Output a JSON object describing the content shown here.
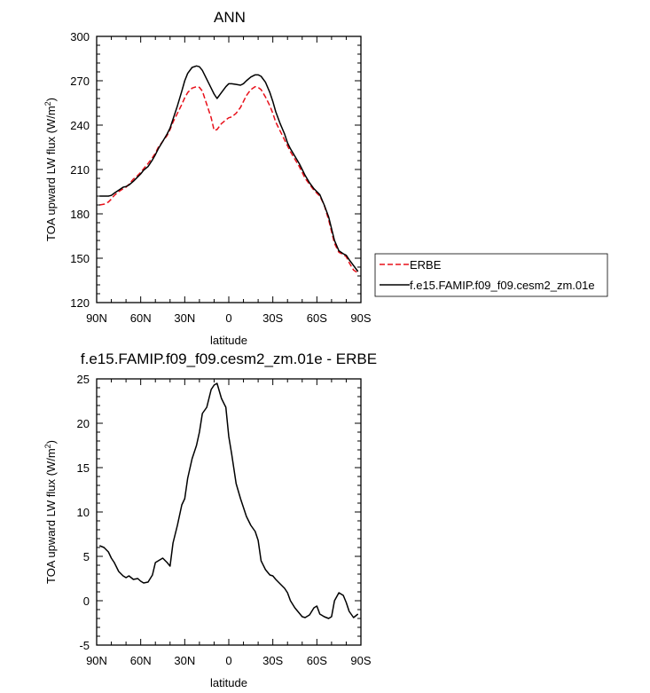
{
  "chart_data": [
    {
      "type": "line",
      "title": "ANN",
      "xlabel": "latitude",
      "ylabel": "TOA upward LW flux (W/m",
      "ylabel_sup": "2",
      "ylabel_close": ")",
      "xlim": [
        90,
        -90
      ],
      "ylim": [
        120,
        300
      ],
      "xticks": [
        90,
        60,
        30,
        0,
        -30,
        -60,
        -90
      ],
      "xticklabels": [
        "90N",
        "60N",
        "30N",
        "0",
        "30S",
        "60S",
        "90S"
      ],
      "yticks": [
        120,
        150,
        180,
        210,
        240,
        270,
        300
      ],
      "yticklabels": [
        "120",
        "150",
        "180",
        "210",
        "240",
        "270",
        "300"
      ],
      "legend_position": "right",
      "series": [
        {
          "name": "ERBE",
          "color": "#e8101a",
          "dash": "dashed",
          "x": [
            88,
            85,
            82,
            80,
            78,
            75,
            72,
            70,
            68,
            65,
            62,
            60,
            58,
            55,
            52,
            50,
            48,
            45,
            42,
            40,
            38,
            35,
            32,
            30,
            28,
            25,
            22,
            20,
            18,
            15,
            12,
            10,
            8,
            5,
            2,
            0,
            -2,
            -5,
            -8,
            -10,
            -12,
            -15,
            -18,
            -20,
            -22,
            -25,
            -28,
            -30,
            -32,
            -35,
            -38,
            -40,
            -42,
            -45,
            -48,
            -50,
            -52,
            -55,
            -58,
            -60,
            -62,
            -65,
            -68,
            -70,
            -72,
            -75,
            -78,
            -80,
            -82,
            -85,
            -88
          ],
          "y": [
            186,
            186.5,
            188,
            190,
            192.5,
            195,
            197,
            198,
            200,
            203.5,
            206,
            208,
            210.5,
            214,
            218,
            221,
            225,
            229,
            233,
            237,
            242,
            248,
            254,
            258.5,
            262,
            265,
            266,
            265.5,
            263,
            254,
            245,
            236.5,
            237,
            241,
            243.5,
            245,
            245.5,
            248,
            252,
            256,
            260,
            264,
            266,
            265.5,
            264,
            259,
            253,
            248,
            242,
            236,
            230,
            226,
            222,
            217,
            212,
            208,
            204,
            200,
            196,
            194,
            192,
            186,
            176,
            168,
            160,
            154,
            152.5,
            151,
            147,
            142,
            140
          ]
        },
        {
          "name": "f.e15.FAMIP.f09_f09.cesm2_zm.01e",
          "color": "#000000",
          "dash": "solid",
          "x": [
            88,
            85,
            82,
            80,
            78,
            75,
            72,
            70,
            68,
            65,
            62,
            60,
            58,
            55,
            52,
            50,
            48,
            45,
            42,
            40,
            38,
            35,
            32,
            30,
            28,
            25,
            22,
            20,
            18,
            15,
            12,
            10,
            8,
            5,
            2,
            0,
            -2,
            -5,
            -8,
            -10,
            -12,
            -15,
            -18,
            -20,
            -22,
            -25,
            -28,
            -30,
            -32,
            -35,
            -38,
            -40,
            -42,
            -45,
            -48,
            -50,
            -52,
            -55,
            -58,
            -60,
            -62,
            -65,
            -68,
            -70,
            -72,
            -75,
            -78,
            -80,
            -82,
            -85,
            -88
          ],
          "y": [
            192,
            192,
            192,
            192.5,
            194,
            196,
            198,
            198.5,
            199.5,
            202,
            205,
            207,
            209.5,
            212,
            216.5,
            220,
            224,
            229,
            234,
            238,
            244,
            253,
            263,
            270,
            275,
            279,
            280,
            279.5,
            277,
            271,
            265,
            261,
            258,
            262,
            266,
            268,
            268,
            267.5,
            267,
            268,
            270,
            272.5,
            274,
            274,
            273,
            269,
            262,
            256,
            249,
            241,
            234,
            228,
            224,
            219,
            214,
            210,
            206,
            201,
            197,
            195,
            193,
            186,
            178,
            170,
            162,
            155,
            153,
            152,
            149,
            145,
            141
          ]
        }
      ]
    },
    {
      "type": "line",
      "title": "f.e15.FAMIP.f09_f09.cesm2_zm.01e - ERBE",
      "xlabel": "latitude",
      "ylabel": "TOA upward LW flux (W/m",
      "ylabel_sup": "2",
      "ylabel_close": ")",
      "xlim": [
        90,
        -90
      ],
      "ylim": [
        -5,
        25
      ],
      "xticks": [
        90,
        60,
        30,
        0,
        -30,
        -60,
        -90
      ],
      "xticklabels": [
        "90N",
        "60N",
        "30N",
        "0",
        "30S",
        "60S",
        "90S"
      ],
      "yticks": [
        -5,
        0,
        5,
        10,
        15,
        20,
        25
      ],
      "yticklabels": [
        "-5",
        "0",
        "5",
        "10",
        "15",
        "20",
        "25"
      ],
      "series": [
        {
          "name": "f.e15.FAMIP.f09_f09.cesm2_zm.01e - ERBE",
          "color": "#000000",
          "dash": "solid",
          "x": [
            88,
            85,
            82,
            80,
            78,
            75,
            72,
            70,
            68,
            65,
            62,
            60,
            58,
            55,
            52,
            50,
            48,
            45,
            42,
            40,
            38,
            35,
            32,
            30,
            28,
            25,
            22,
            20,
            18,
            15,
            12,
            10,
            8,
            5,
            2,
            0,
            -2,
            -5,
            -8,
            -10,
            -12,
            -15,
            -18,
            -20,
            -22,
            -25,
            -28,
            -30,
            -32,
            -35,
            -38,
            -40,
            -42,
            -45,
            -48,
            -50,
            -52,
            -55,
            -58,
            -60,
            -62,
            -65,
            -68,
            -70,
            -72,
            -75,
            -78,
            -80,
            -82,
            -85,
            -88
          ],
          "y": [
            6.2,
            6.0,
            5.5,
            4.8,
            4.3,
            3.3,
            2.8,
            2.6,
            2.8,
            2.4,
            2.5,
            2.2,
            2.0,
            2.1,
            2.9,
            4.3,
            4.5,
            4.8,
            4.3,
            3.9,
            6.5,
            8.5,
            10.8,
            11.5,
            13.8,
            16.0,
            17.5,
            19.0,
            21.1,
            21.8,
            23.8,
            24.3,
            24.5,
            22.8,
            21.8,
            18.5,
            16.5,
            13.2,
            11.5,
            10.5,
            9.5,
            8.5,
            7.8,
            6.8,
            4.5,
            3.5,
            2.9,
            2.8,
            2.4,
            1.9,
            1.4,
            0.9,
            0.0,
            -0.8,
            -1.4,
            -1.8,
            -1.9,
            -1.6,
            -0.8,
            -0.6,
            -1.5,
            -1.8,
            -2.0,
            -1.8,
            0.0,
            0.9,
            0.6,
            -0.2,
            -1.2,
            -1.9,
            -1.5
          ]
        }
      ]
    }
  ]
}
